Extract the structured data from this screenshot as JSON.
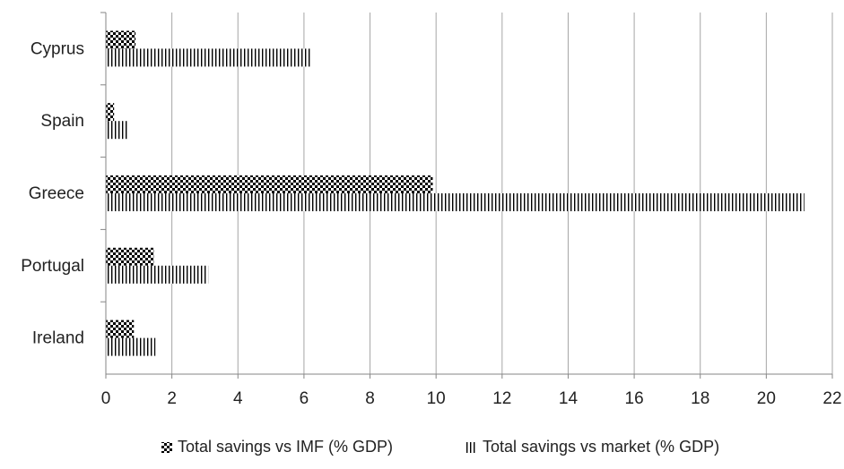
{
  "chart_data": {
    "type": "bar",
    "orientation": "horizontal",
    "categories": [
      "Ireland",
      "Portugal",
      "Greece",
      "Spain",
      "Cyprus"
    ],
    "series": [
      {
        "name": "Total savings vs IMF (% GDP)",
        "values": [
          0.85,
          1.45,
          9.9,
          0.25,
          0.9
        ],
        "pattern": "checker"
      },
      {
        "name": "Total savings vs market (% GDP)",
        "values": [
          1.5,
          3.1,
          21.15,
          0.65,
          6.2
        ],
        "pattern": "vertical-lines"
      }
    ],
    "xlim": [
      0,
      22
    ],
    "xticks": [
      "0",
      "2",
      "4",
      "6",
      "8",
      "10",
      "12",
      "14",
      "16",
      "18",
      "20",
      "22"
    ],
    "grid": true,
    "legend_position": "bottom",
    "colors": {
      "bar": "#000000",
      "grid": "#a6a6a6",
      "axis": "#868686",
      "text": "#222222"
    }
  }
}
